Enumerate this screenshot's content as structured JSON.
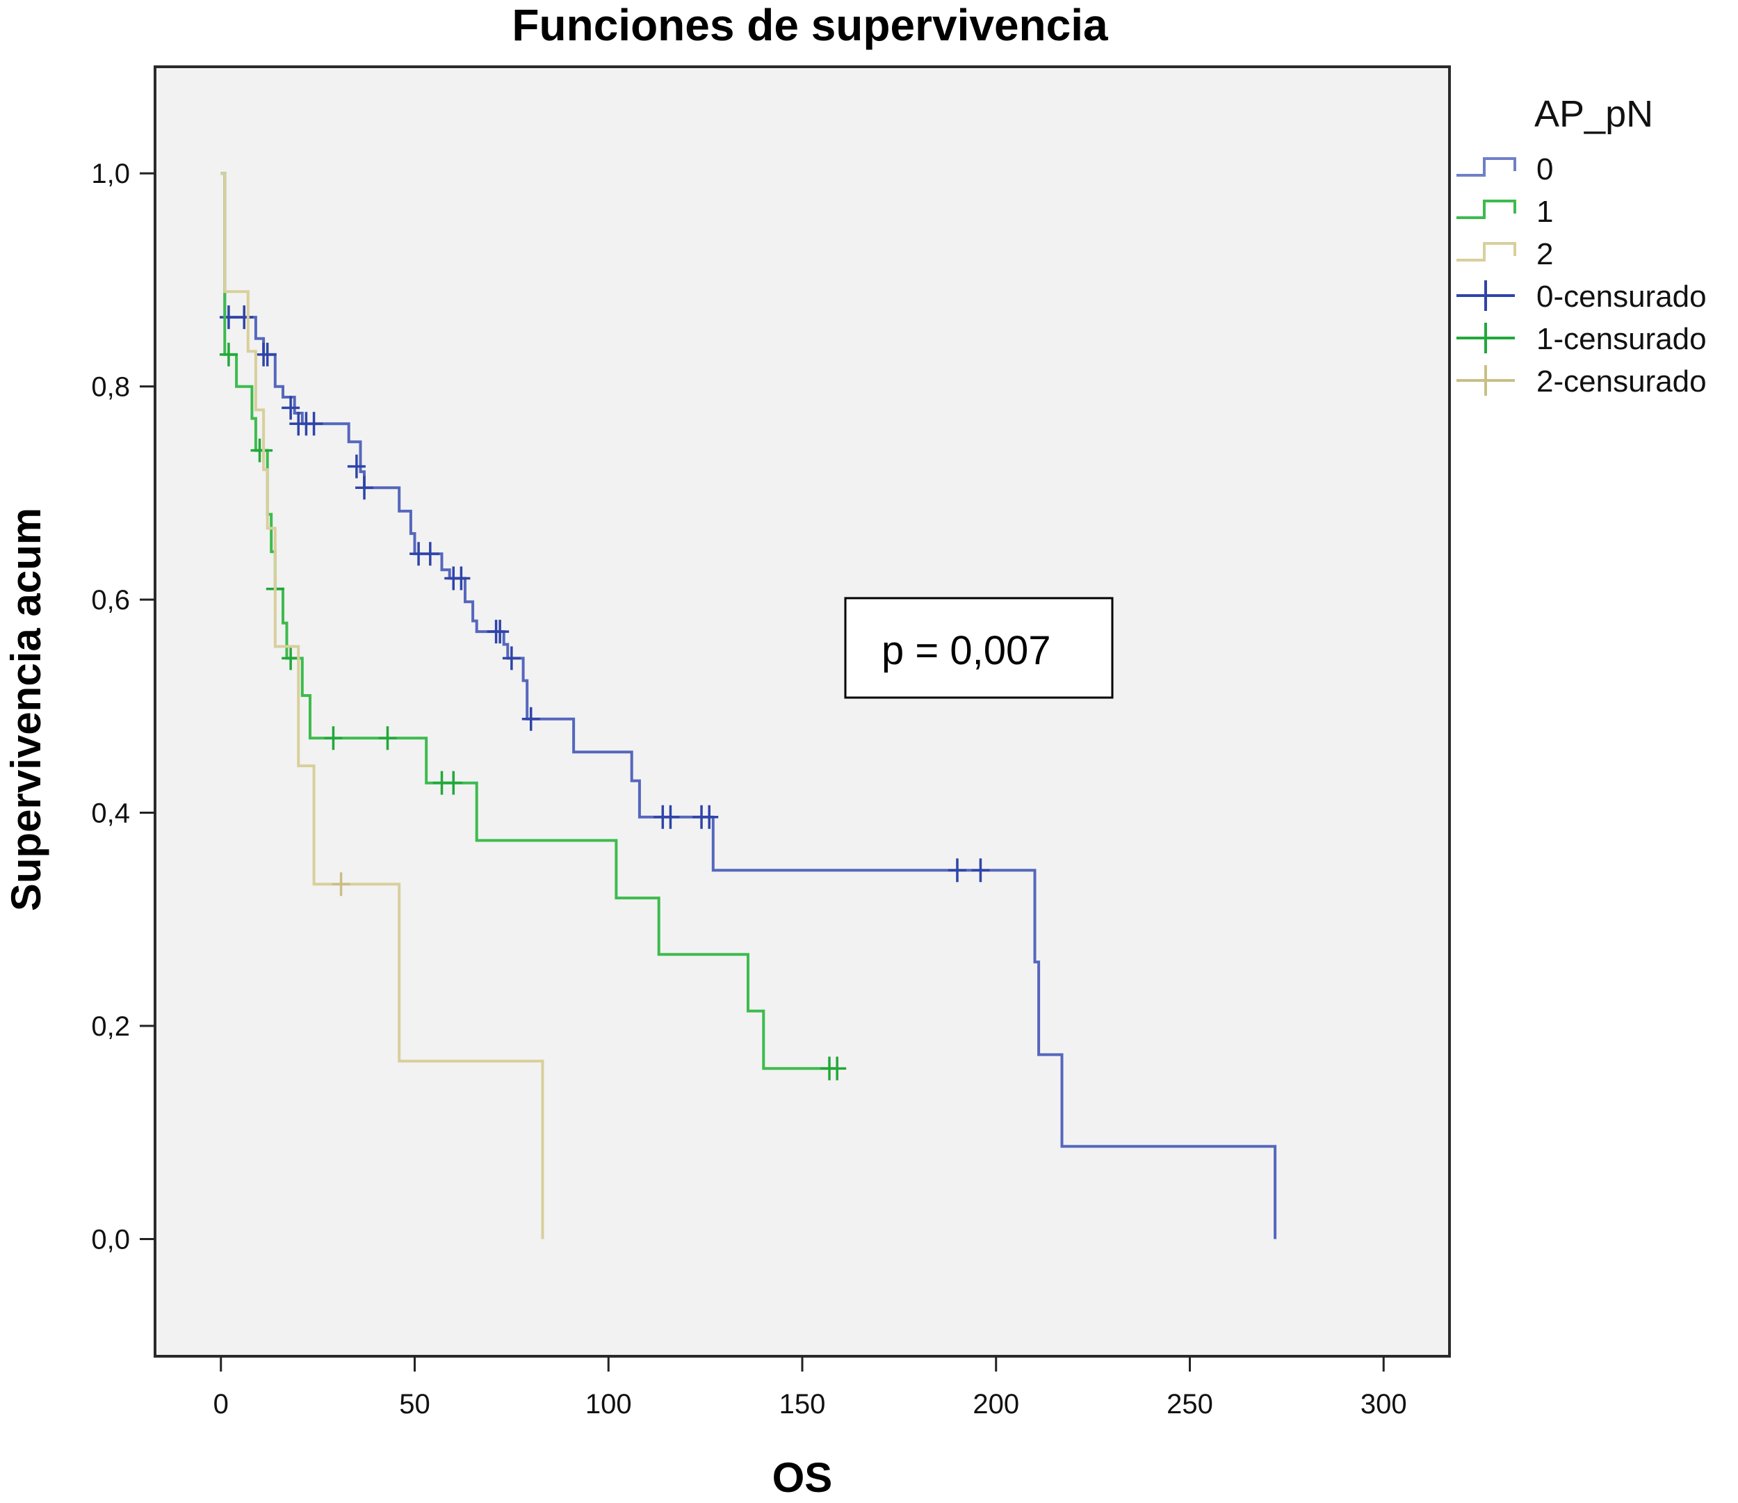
{
  "chart_data": {
    "type": "line",
    "subtype": "kaplan-meier step",
    "title": "Funciones de supervivencia",
    "xlabel": "OS",
    "ylabel": "Supervivencia acum",
    "xlim": [
      -17,
      317
    ],
    "ylim": [
      -0.11,
      1.1
    ],
    "xticks": [
      0,
      50,
      100,
      150,
      200,
      250,
      300
    ],
    "xtick_labels": [
      "0",
      "50",
      "100",
      "150",
      "200",
      "250",
      "300"
    ],
    "yticks": [
      0.0,
      0.2,
      0.4,
      0.6,
      0.8,
      1.0
    ],
    "ytick_labels": [
      "0,0",
      "0,2",
      "0,4",
      "0,6",
      "0,8",
      "1,0"
    ],
    "grid": false,
    "plot_background": "#f2f2f2",
    "legend": {
      "title": "AP_pN",
      "position": "right",
      "entries": [
        {
          "label": "0",
          "kind": "line",
          "color": "#6f7fc8"
        },
        {
          "label": "1",
          "kind": "line",
          "color": "#3dbb4e"
        },
        {
          "label": "2",
          "kind": "line",
          "color": "#d8cf9c"
        },
        {
          "label": "0-censurado",
          "kind": "censor",
          "color": "#2f44a8"
        },
        {
          "label": "1-censurado",
          "kind": "censor",
          "color": "#22a83a"
        },
        {
          "label": "2-censurado",
          "kind": "censor",
          "color": "#c9bf86"
        }
      ]
    },
    "annotation": "p = 0,007",
    "series": [
      {
        "name": "0",
        "color": "#5567bd",
        "censor_color": "#2f44a8",
        "steps": [
          [
            0,
            1.0
          ],
          [
            1,
            0.865
          ],
          [
            9,
            0.845
          ],
          [
            11,
            0.83
          ],
          [
            14,
            0.8
          ],
          [
            16,
            0.79
          ],
          [
            19,
            0.775
          ],
          [
            21,
            0.765
          ],
          [
            28,
            0.765
          ],
          [
            33,
            0.748
          ],
          [
            36,
            0.72
          ],
          [
            37,
            0.705
          ],
          [
            46,
            0.683
          ],
          [
            49,
            0.662
          ],
          [
            50,
            0.643
          ],
          [
            57,
            0.628
          ],
          [
            59,
            0.62
          ],
          [
            63,
            0.598
          ],
          [
            65,
            0.58
          ],
          [
            66,
            0.57
          ],
          [
            73,
            0.558
          ],
          [
            74,
            0.545
          ],
          [
            78,
            0.524
          ],
          [
            79,
            0.488
          ],
          [
            91,
            0.457
          ],
          [
            106,
            0.43
          ],
          [
            108,
            0.396
          ],
          [
            127,
            0.346
          ],
          [
            210,
            0.26
          ],
          [
            211,
            0.173
          ],
          [
            217,
            0.087
          ],
          [
            272,
            0.0
          ]
        ],
        "end_x": 272,
        "censored": [
          [
            2,
            0.865
          ],
          [
            6,
            0.865
          ],
          [
            11,
            0.83
          ],
          [
            12,
            0.83
          ],
          [
            18,
            0.78
          ],
          [
            20,
            0.765
          ],
          [
            22,
            0.765
          ],
          [
            24,
            0.765
          ],
          [
            35,
            0.725
          ],
          [
            37,
            0.705
          ],
          [
            51,
            0.643
          ],
          [
            54,
            0.643
          ],
          [
            60,
            0.62
          ],
          [
            62,
            0.62
          ],
          [
            71,
            0.57
          ],
          [
            72,
            0.57
          ],
          [
            75,
            0.545
          ],
          [
            80,
            0.488
          ],
          [
            114,
            0.396
          ],
          [
            116,
            0.396
          ],
          [
            124,
            0.396
          ],
          [
            126,
            0.396
          ],
          [
            190,
            0.346
          ],
          [
            196,
            0.346
          ]
        ]
      },
      {
        "name": "1",
        "color": "#3dbb4e",
        "censor_color": "#22a83a",
        "steps": [
          [
            0,
            1.0
          ],
          [
            1,
            0.83
          ],
          [
            4,
            0.8
          ],
          [
            8,
            0.77
          ],
          [
            9,
            0.74
          ],
          [
            12,
            0.68
          ],
          [
            13,
            0.645
          ],
          [
            14,
            0.61
          ],
          [
            16,
            0.578
          ],
          [
            17,
            0.545
          ],
          [
            21,
            0.51
          ],
          [
            23,
            0.47
          ],
          [
            53,
            0.428
          ],
          [
            66,
            0.374
          ],
          [
            102,
            0.32
          ],
          [
            113,
            0.267
          ],
          [
            136,
            0.214
          ],
          [
            140,
            0.16
          ]
        ],
        "end_x": 159,
        "censored": [
          [
            2,
            0.83
          ],
          [
            10,
            0.74
          ],
          [
            11,
            0.74
          ],
          [
            14,
            0.61
          ],
          [
            18,
            0.545
          ],
          [
            29,
            0.47
          ],
          [
            43,
            0.47
          ],
          [
            57,
            0.428
          ],
          [
            60,
            0.428
          ],
          [
            157,
            0.16
          ],
          [
            159,
            0.16
          ]
        ]
      },
      {
        "name": "2",
        "color": "#d8cf9c",
        "censor_color": "#c9bf86",
        "steps": [
          [
            0,
            1.0
          ],
          [
            1,
            0.889
          ],
          [
            7,
            0.833
          ],
          [
            9,
            0.778
          ],
          [
            11,
            0.722
          ],
          [
            12,
            0.667
          ],
          [
            14,
            0.556
          ],
          [
            20,
            0.444
          ],
          [
            24,
            0.333
          ],
          [
            46,
            0.167
          ],
          [
            83,
            0.0
          ]
        ],
        "end_x": 83,
        "censored": [
          [
            31,
            0.333
          ]
        ]
      }
    ]
  }
}
